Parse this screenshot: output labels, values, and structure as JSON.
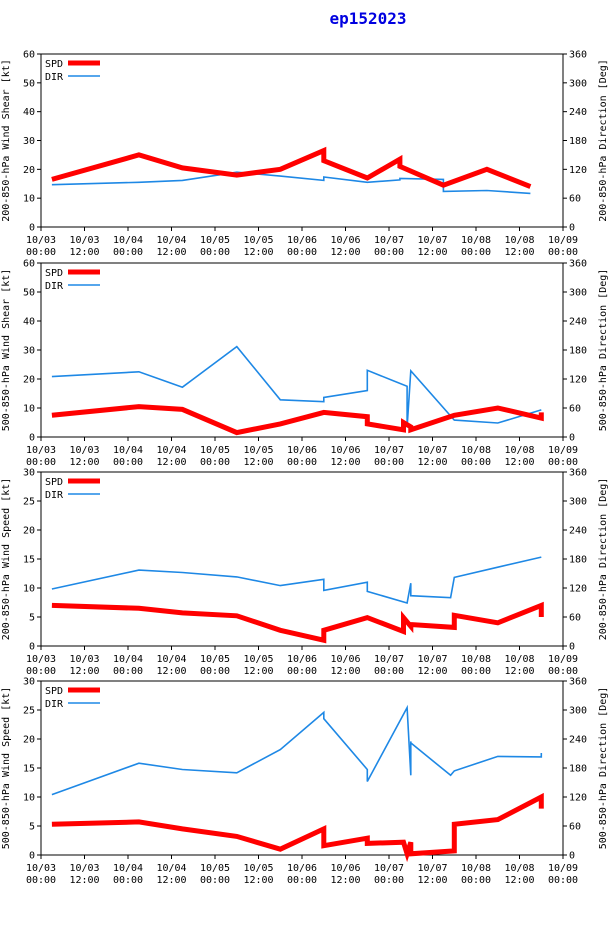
{
  "title": "ep152023",
  "colors": {
    "spd": "#ff0000",
    "dir": "#1e88e5",
    "axis": "#000000",
    "title": "#0000e0"
  },
  "x_ticks": [
    {
      "t": 0,
      "date": "10/03",
      "time": "00:00"
    },
    {
      "t": 12,
      "date": "10/03",
      "time": "12:00"
    },
    {
      "t": 24,
      "date": "10/04",
      "time": "00:00"
    },
    {
      "t": 36,
      "date": "10/04",
      "time": "12:00"
    },
    {
      "t": 48,
      "date": "10/05",
      "time": "00:00"
    },
    {
      "t": 60,
      "date": "10/05",
      "time": "12:00"
    },
    {
      "t": 72,
      "date": "10/06",
      "time": "00:00"
    },
    {
      "t": 84,
      "date": "10/06",
      "time": "12:00"
    },
    {
      "t": 96,
      "date": "10/07",
      "time": "00:00"
    },
    {
      "t": 108,
      "date": "10/07",
      "time": "12:00"
    },
    {
      "t": 120,
      "date": "10/08",
      "time": "00:00"
    },
    {
      "t": 132,
      "date": "10/08",
      "time": "12:00"
    },
    {
      "t": 144,
      "date": "10/09",
      "time": "00:00"
    }
  ],
  "legend": {
    "spd": "SPD",
    "dir": "DIR"
  },
  "chart_data": [
    {
      "type": "line",
      "ylabel_left": "200-850-hPa Wind Shear [kt]",
      "ylabel_right": "200-850-hPa Direction [Deg]",
      "ylim_left": [
        0,
        60
      ],
      "yticks_left": [
        0,
        10,
        20,
        30,
        40,
        50,
        60
      ],
      "ylim_right": [
        0,
        360
      ],
      "yticks_right": [
        0,
        60,
        120,
        180,
        240,
        300,
        360
      ],
      "xlim": [
        0,
        144
      ],
      "series": [
        {
          "name": "SPD",
          "axis": "left",
          "x": [
            3,
            27,
            39,
            54,
            66,
            78,
            78,
            90,
            99,
            99,
            111,
            123,
            135
          ],
          "y": [
            16.5,
            25,
            20.5,
            18,
            20,
            26.5,
            23,
            17,
            23.5,
            21,
            14.5,
            20,
            14
          ]
        },
        {
          "name": "DIR",
          "axis": "right",
          "x": [
            3,
            27,
            39,
            54,
            66,
            78,
            78,
            90,
            99,
            99,
            111,
            111,
            123,
            135
          ],
          "y": [
            88,
            93,
            97,
            114,
            106,
            97,
            104,
            93,
            98,
            101,
            99,
            74,
            76,
            70
          ]
        }
      ]
    },
    {
      "type": "line",
      "ylabel_left": "500-850-hPa Wind Shear [kt]",
      "ylabel_right": "500-850-hPa Direction [Deg]",
      "ylim_left": [
        0,
        60
      ],
      "yticks_left": [
        0,
        10,
        20,
        30,
        40,
        50,
        60
      ],
      "ylim_right": [
        0,
        360
      ],
      "yticks_right": [
        0,
        60,
        120,
        180,
        240,
        300,
        360
      ],
      "xlim": [
        0,
        144
      ],
      "series": [
        {
          "name": "SPD",
          "axis": "left",
          "x": [
            3,
            27,
            39,
            54,
            66,
            78,
            90,
            90,
            100,
            100,
            102,
            102,
            114,
            126,
            138,
            138
          ],
          "y": [
            7.5,
            10.5,
            9.5,
            1.5,
            4.5,
            8.5,
            7,
            4.5,
            2.5,
            5,
            3.5,
            2.5,
            7.5,
            10,
            6.5,
            8.5
          ]
        },
        {
          "name": "DIR",
          "axis": "right",
          "x": [
            3,
            27,
            39,
            54,
            66,
            78,
            78,
            90,
            90,
            101,
            101,
            102,
            114,
            126,
            138
          ],
          "y": [
            125,
            135,
            103,
            187,
            77,
            73,
            82,
            96,
            138,
            105,
            20,
            137,
            35,
            29,
            56
          ]
        }
      ]
    },
    {
      "type": "line",
      "ylabel_left": "200-850-hPa Wind Speed [kt]",
      "ylabel_right": "200-850-hPa Direction [Deg]",
      "ylim_left": [
        0,
        30
      ],
      "yticks_left": [
        0,
        5,
        10,
        15,
        20,
        25,
        30
      ],
      "ylim_right": [
        0,
        360
      ],
      "yticks_right": [
        0,
        60,
        120,
        180,
        240,
        300,
        360
      ],
      "xlim": [
        0,
        144
      ],
      "series": [
        {
          "name": "SPD",
          "axis": "left",
          "x": [
            3,
            27,
            39,
            54,
            66,
            78,
            78,
            90,
            100,
            100,
            102,
            102,
            114,
            114,
            126,
            138,
            138
          ],
          "y": [
            7,
            6.5,
            5.7,
            5.2,
            2.7,
            1,
            2.7,
            4.9,
            2.5,
            4.9,
            3.4,
            3.7,
            3.2,
            5.3,
            4,
            7,
            5
          ]
        },
        {
          "name": "DIR",
          "axis": "right",
          "x": [
            3,
            27,
            39,
            54,
            66,
            78,
            78,
            90,
            90,
            101,
            102,
            102,
            113,
            114,
            126,
            138
          ],
          "y": [
            118,
            157,
            152,
            143,
            125,
            138,
            115,
            132,
            113,
            89,
            130,
            104,
            100,
            142,
            163,
            184
          ]
        }
      ]
    },
    {
      "type": "line",
      "ylabel_left": "500-850-hPa Wind Speed [kt]",
      "ylabel_right": "500-850-hPa Direction [Deg]",
      "ylim_left": [
        0,
        30
      ],
      "yticks_left": [
        0,
        5,
        10,
        15,
        20,
        25,
        30
      ],
      "ylim_right": [
        0,
        360
      ],
      "yticks_right": [
        0,
        60,
        120,
        180,
        240,
        300,
        360
      ],
      "xlim": [
        0,
        144
      ],
      "series": [
        {
          "name": "SPD",
          "axis": "left",
          "x": [
            3,
            27,
            39,
            54,
            66,
            78,
            78,
            90,
            90,
            100,
            101,
            102,
            102,
            114,
            114,
            126,
            138,
            138
          ],
          "y": [
            5.3,
            5.7,
            4.5,
            3.2,
            1,
            4.5,
            1.6,
            2.9,
            2,
            2.2,
            0.2,
            2.2,
            0.2,
            0.7,
            5.3,
            6.1,
            10,
            8
          ]
        },
        {
          "name": "DIR",
          "axis": "right",
          "x": [
            3,
            27,
            39,
            54,
            66,
            78,
            78,
            90,
            90,
            101,
            102,
            102,
            102,
            113,
            114,
            126,
            138,
            138
          ],
          "y": [
            125,
            190,
            177,
            170,
            218,
            295,
            282,
            177,
            152,
            305,
            165,
            235,
            232,
            165,
            174,
            204,
            203,
            211
          ]
        }
      ]
    }
  ]
}
